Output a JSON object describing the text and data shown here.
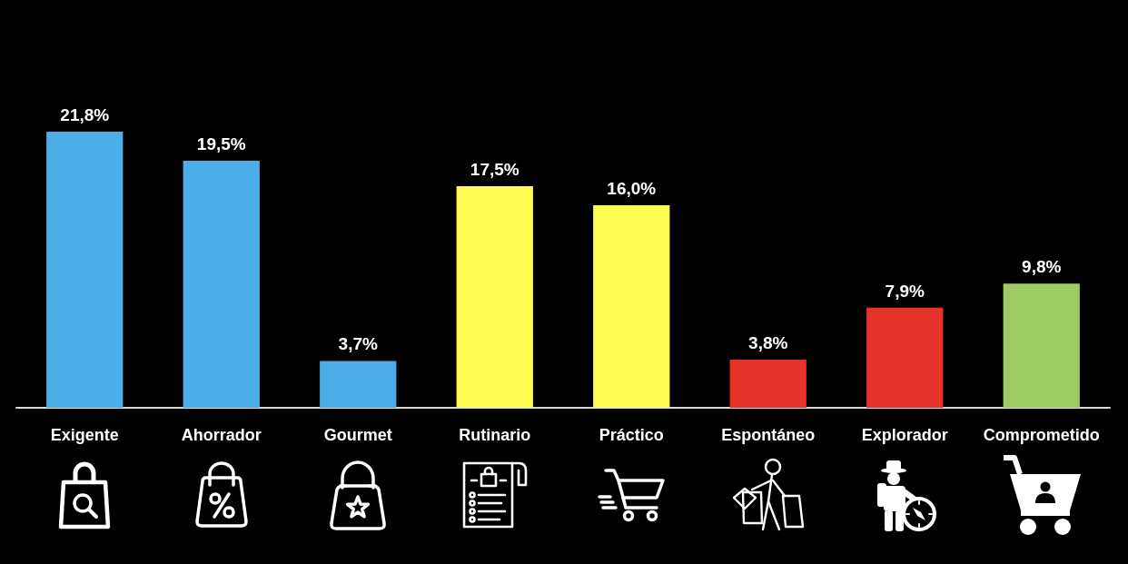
{
  "chart_data": {
    "type": "bar",
    "categories": [
      "Exigente",
      "Ahorrador",
      "Gourmet",
      "Rutinario",
      "Práctico",
      "Espontáneo",
      "Explorador",
      "Comprometido"
    ],
    "values": [
      21.8,
      19.5,
      3.7,
      17.5,
      16.0,
      3.8,
      7.9,
      9.8
    ],
    "colors": [
      "#4baee8",
      "#4baee8",
      "#4baee8",
      "#fefb51",
      "#fefb51",
      "#e63329",
      "#e63329",
      "#9bcb62"
    ],
    "value_labels": [
      "21,8%",
      "19,5%",
      "3,7%",
      "17,5%",
      "16,0%",
      "3,8%",
      "7,9%",
      "9,8%"
    ]
  }
}
